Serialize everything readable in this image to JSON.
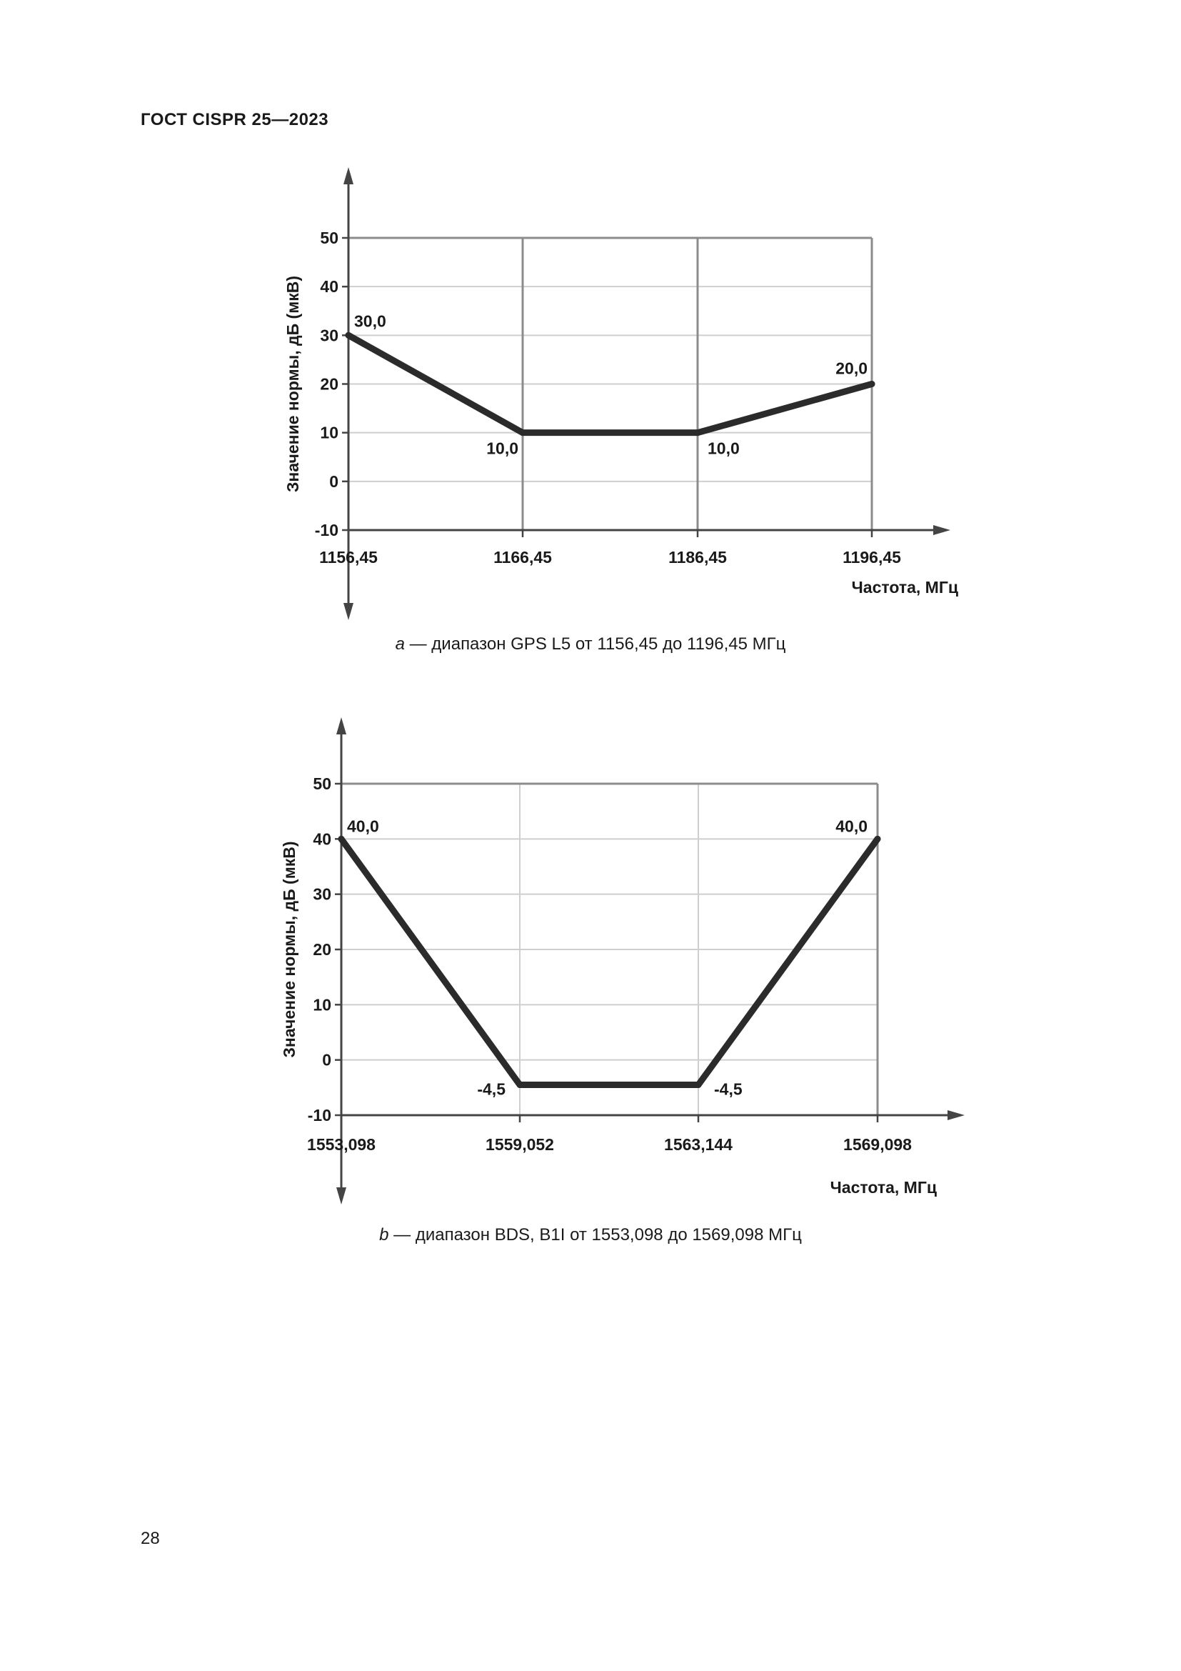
{
  "header": {
    "doc_code": "ГОСТ CISPR 25—2023"
  },
  "page_number": "28",
  "chart_data": [
    {
      "type": "line",
      "x_categories": [
        "1156,45",
        "1166,45",
        "1186,45",
        "1196,45"
      ],
      "xlabel": "Частота, МГц",
      "ylabel": "Значение нормы, дБ (мкВ)",
      "ylim": [
        -10,
        50
      ],
      "yticks": [
        50,
        40,
        30,
        20,
        10,
        0,
        -10
      ],
      "grid": true,
      "series": [
        {
          "values": [
            30.0,
            10.0,
            10.0,
            20.0
          ],
          "labels": [
            "30,0",
            "10,0",
            "10,0",
            "20,0"
          ]
        }
      ],
      "caption_letter": "a",
      "caption_text": " — диапазон GPS L5 от 1156,45 до 1196,45 МГц"
    },
    {
      "type": "line",
      "x_categories": [
        "1553,098",
        "1559,052",
        "1563,144",
        "1569,098"
      ],
      "xlabel": "Частота, МГц",
      "ylabel": "Значение нормы, дБ (мкВ)",
      "ylim": [
        -10,
        50
      ],
      "yticks": [
        50,
        40,
        30,
        20,
        10,
        0,
        -10
      ],
      "grid": true,
      "series": [
        {
          "values": [
            40.0,
            -4.5,
            -4.5,
            40.0
          ],
          "labels": [
            "40,0",
            "-4,5",
            "-4,5",
            "40,0"
          ]
        }
      ],
      "caption_letter": "b",
      "caption_text": " — диапазон BDS, B1I от 1553,098 до 1569,098 МГц"
    }
  ]
}
